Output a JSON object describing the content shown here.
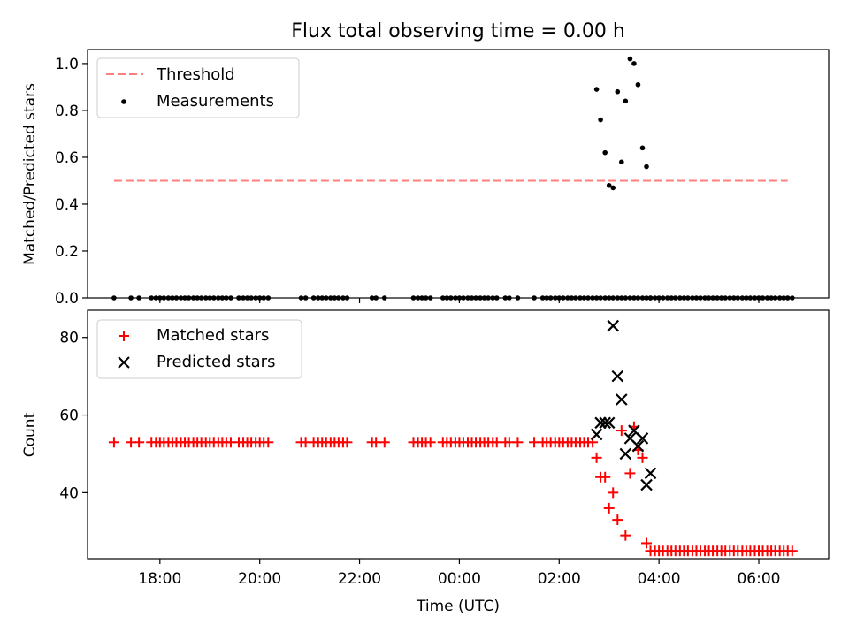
{
  "title": "Flux total observing time = 0.00 h",
  "xlabel": "Time (UTC)",
  "x_ticks": [
    "18:00",
    "20:00",
    "22:00",
    "00:00",
    "02:00",
    "04:00",
    "06:00"
  ],
  "x_tick_hours": [
    18,
    20,
    22,
    24,
    26,
    28,
    30
  ],
  "colors": {
    "threshold": "#ff7f7f",
    "measurements": "#000000",
    "matched": "#ff0000",
    "predicted": "#000000"
  },
  "chart_data": [
    {
      "type": "scatter",
      "panel": "top",
      "ylabel": "Matched/Predicted stars",
      "ylim": [
        0,
        1.06
      ],
      "xlim": [
        16.55,
        31.4
      ],
      "y_ticks": [
        0.0,
        0.2,
        0.4,
        0.6,
        0.8,
        1.0
      ],
      "y_tick_labels": [
        "0.0",
        "0.2",
        "0.4",
        "0.6",
        "0.8",
        "1.0"
      ],
      "legend_position": "top-left",
      "threshold": {
        "name": "Threshold",
        "value": 0.5,
        "x_range": [
          17.08,
          30.58
        ]
      },
      "series": [
        {
          "name": "Measurements",
          "x": [
            17.08,
            17.42,
            17.58,
            17.83,
            17.92,
            18.0,
            18.08,
            18.17,
            18.25,
            18.33,
            18.42,
            18.5,
            18.58,
            18.67,
            18.75,
            18.83,
            18.92,
            19.0,
            19.08,
            19.17,
            19.25,
            19.33,
            19.42,
            19.58,
            19.67,
            19.75,
            19.83,
            19.92,
            20.0,
            20.08,
            20.17,
            20.83,
            20.92,
            21.08,
            21.17,
            21.25,
            21.33,
            21.42,
            21.5,
            21.58,
            21.67,
            21.75,
            22.25,
            22.33,
            22.5,
            23.08,
            23.17,
            23.25,
            23.33,
            23.42,
            23.67,
            23.75,
            23.83,
            23.92,
            24.0,
            24.08,
            24.17,
            24.25,
            24.33,
            24.42,
            24.5,
            24.58,
            24.67,
            24.75,
            24.92,
            25.0,
            25.17,
            25.5,
            25.67,
            25.75,
            25.83,
            25.92,
            26.0,
            26.08,
            26.17,
            26.25,
            26.33,
            26.42,
            26.5,
            26.58,
            26.67,
            26.75,
            26.83,
            26.92,
            27.0,
            27.08,
            27.17,
            27.25,
            27.33,
            27.42,
            27.5,
            27.58,
            27.67,
            27.75,
            27.83,
            27.92,
            28.0,
            28.08,
            28.17,
            28.25,
            28.33,
            28.42,
            28.5,
            28.58,
            28.67,
            28.75,
            28.83,
            28.92,
            29.0,
            29.08,
            29.17,
            29.25,
            29.33,
            29.42,
            29.5,
            29.58,
            29.67,
            29.75,
            29.83,
            29.92,
            30.0,
            30.08,
            30.17,
            30.25,
            30.33,
            30.42,
            30.5,
            30.58,
            30.67
          ],
          "y": [
            0.0,
            0.0,
            0.0,
            0.0,
            0.0,
            0.0,
            0.0,
            0.0,
            0.0,
            0.0,
            0.0,
            0.0,
            0.0,
            0.0,
            0.0,
            0.0,
            0.0,
            0.0,
            0.0,
            0.0,
            0.0,
            0.0,
            0.0,
            0.0,
            0.0,
            0.0,
            0.0,
            0.0,
            0.0,
            0.0,
            0.0,
            0.0,
            0.0,
            0.0,
            0.0,
            0.0,
            0.0,
            0.0,
            0.0,
            0.0,
            0.0,
            0.0,
            0.0,
            0.0,
            0.0,
            0.0,
            0.0,
            0.0,
            0.0,
            0.0,
            0.0,
            0.0,
            0.0,
            0.0,
            0.0,
            0.0,
            0.0,
            0.0,
            0.0,
            0.0,
            0.0,
            0.0,
            0.0,
            0.0,
            0.0,
            0.0,
            0.0,
            0.0,
            0.0,
            0.0,
            0.0,
            0.0,
            0.0,
            0.0,
            0.0,
            0.0,
            0.0,
            0.0,
            0.0,
            0.0,
            0.0,
            0.0,
            0.0,
            0.0,
            0.0,
            0.0,
            0.0,
            0.0,
            0.0,
            0.0,
            0.0,
            0.0,
            0.0,
            0.0,
            0.0,
            0.0,
            0.0,
            0.0,
            0.0,
            0.0,
            0.0,
            0.0,
            0.0,
            0.0,
            0.0,
            0.0,
            0.0,
            0.0,
            0.0,
            0.0,
            0.0,
            0.0,
            0.0,
            0.0,
            0.0,
            0.0,
            0.0,
            0.0,
            0.0,
            0.0,
            0.0,
            0.0,
            0.0,
            0.0,
            0.0,
            0.0,
            0.0,
            0.0,
            0.0
          ]
        },
        {
          "name": "Measurements",
          "x": [
            26.75,
            26.83,
            26.92,
            27.0,
            27.08,
            27.17,
            27.25,
            27.33,
            27.42,
            27.5,
            27.58,
            27.67,
            27.75,
            27.83
          ],
          "y": [
            0.89,
            0.76,
            0.62,
            0.48,
            0.47,
            0.88,
            0.58,
            0.84,
            1.02,
            1.0,
            0.91,
            0.64,
            0.56,
            0.0
          ]
        }
      ]
    },
    {
      "type": "scatter",
      "panel": "bottom",
      "ylabel": "Count",
      "ylim": [
        23,
        87
      ],
      "xlim": [
        16.55,
        31.4
      ],
      "y_ticks": [
        40,
        60,
        80
      ],
      "y_tick_labels": [
        "40",
        "60",
        "80"
      ],
      "legend_position": "top-left",
      "series": [
        {
          "name": "Matched stars",
          "x": [
            17.08,
            17.42,
            17.58,
            17.83,
            17.92,
            18.0,
            18.08,
            18.17,
            18.25,
            18.33,
            18.42,
            18.5,
            18.58,
            18.67,
            18.75,
            18.83,
            18.92,
            19.0,
            19.08,
            19.17,
            19.25,
            19.33,
            19.42,
            19.58,
            19.67,
            19.75,
            19.83,
            19.92,
            20.0,
            20.08,
            20.17,
            20.83,
            20.92,
            21.08,
            21.17,
            21.25,
            21.33,
            21.42,
            21.5,
            21.58,
            21.67,
            21.75,
            22.25,
            22.33,
            22.5,
            23.08,
            23.17,
            23.25,
            23.33,
            23.42,
            23.67,
            23.75,
            23.83,
            23.92,
            24.0,
            24.08,
            24.17,
            24.25,
            24.33,
            24.42,
            24.5,
            24.58,
            24.67,
            24.75,
            24.92,
            25.0,
            25.17,
            25.5,
            25.67,
            25.75,
            25.83,
            25.92,
            26.0,
            26.08,
            26.17,
            26.25,
            26.33,
            26.42,
            26.5,
            26.58,
            26.67,
            26.75,
            26.83,
            26.92,
            27.0,
            27.08,
            27.17,
            27.25,
            27.33,
            27.42,
            27.5,
            27.58,
            27.67,
            27.75,
            27.83,
            27.92,
            28.0,
            28.08,
            28.17,
            28.25,
            28.33,
            28.42,
            28.5,
            28.58,
            28.67,
            28.75,
            28.83,
            28.92,
            29.0,
            29.08,
            29.17,
            29.25,
            29.33,
            29.42,
            29.5,
            29.58,
            29.67,
            29.75,
            29.83,
            29.92,
            30.0,
            30.08,
            30.17,
            30.25,
            30.33,
            30.42,
            30.5,
            30.58,
            30.67
          ],
          "y": [
            53,
            53,
            53,
            53,
            53,
            53,
            53,
            53,
            53,
            53,
            53,
            53,
            53,
            53,
            53,
            53,
            53,
            53,
            53,
            53,
            53,
            53,
            53,
            53,
            53,
            53,
            53,
            53,
            53,
            53,
            53,
            53,
            53,
            53,
            53,
            53,
            53,
            53,
            53,
            53,
            53,
            53,
            53,
            53,
            53,
            53,
            53,
            53,
            53,
            53,
            53,
            53,
            53,
            53,
            53,
            53,
            53,
            53,
            53,
            53,
            53,
            53,
            53,
            53,
            53,
            53,
            53,
            53,
            53,
            53,
            53,
            53,
            53,
            53,
            53,
            53,
            53,
            53,
            53,
            53,
            53,
            49,
            44,
            44,
            36,
            40,
            33,
            56,
            29,
            45,
            57,
            51,
            49,
            27,
            25,
            25,
            25,
            25,
            25,
            25,
            25,
            25,
            25,
            25,
            25,
            25,
            25,
            25,
            25,
            25,
            25,
            25,
            25,
            25,
            25,
            25,
            25,
            25,
            25,
            25,
            25,
            25,
            25,
            25,
            25,
            25,
            25,
            25,
            25
          ]
        },
        {
          "name": "Predicted stars",
          "x": [
            26.75,
            26.83,
            26.92,
            27.0,
            27.08,
            27.17,
            27.25,
            27.33,
            27.42,
            27.5,
            27.58,
            27.67,
            27.75,
            27.83
          ],
          "y": [
            55,
            58,
            58,
            58,
            83,
            70,
            64,
            50,
            54,
            56,
            52,
            54,
            42,
            45
          ]
        }
      ]
    }
  ]
}
